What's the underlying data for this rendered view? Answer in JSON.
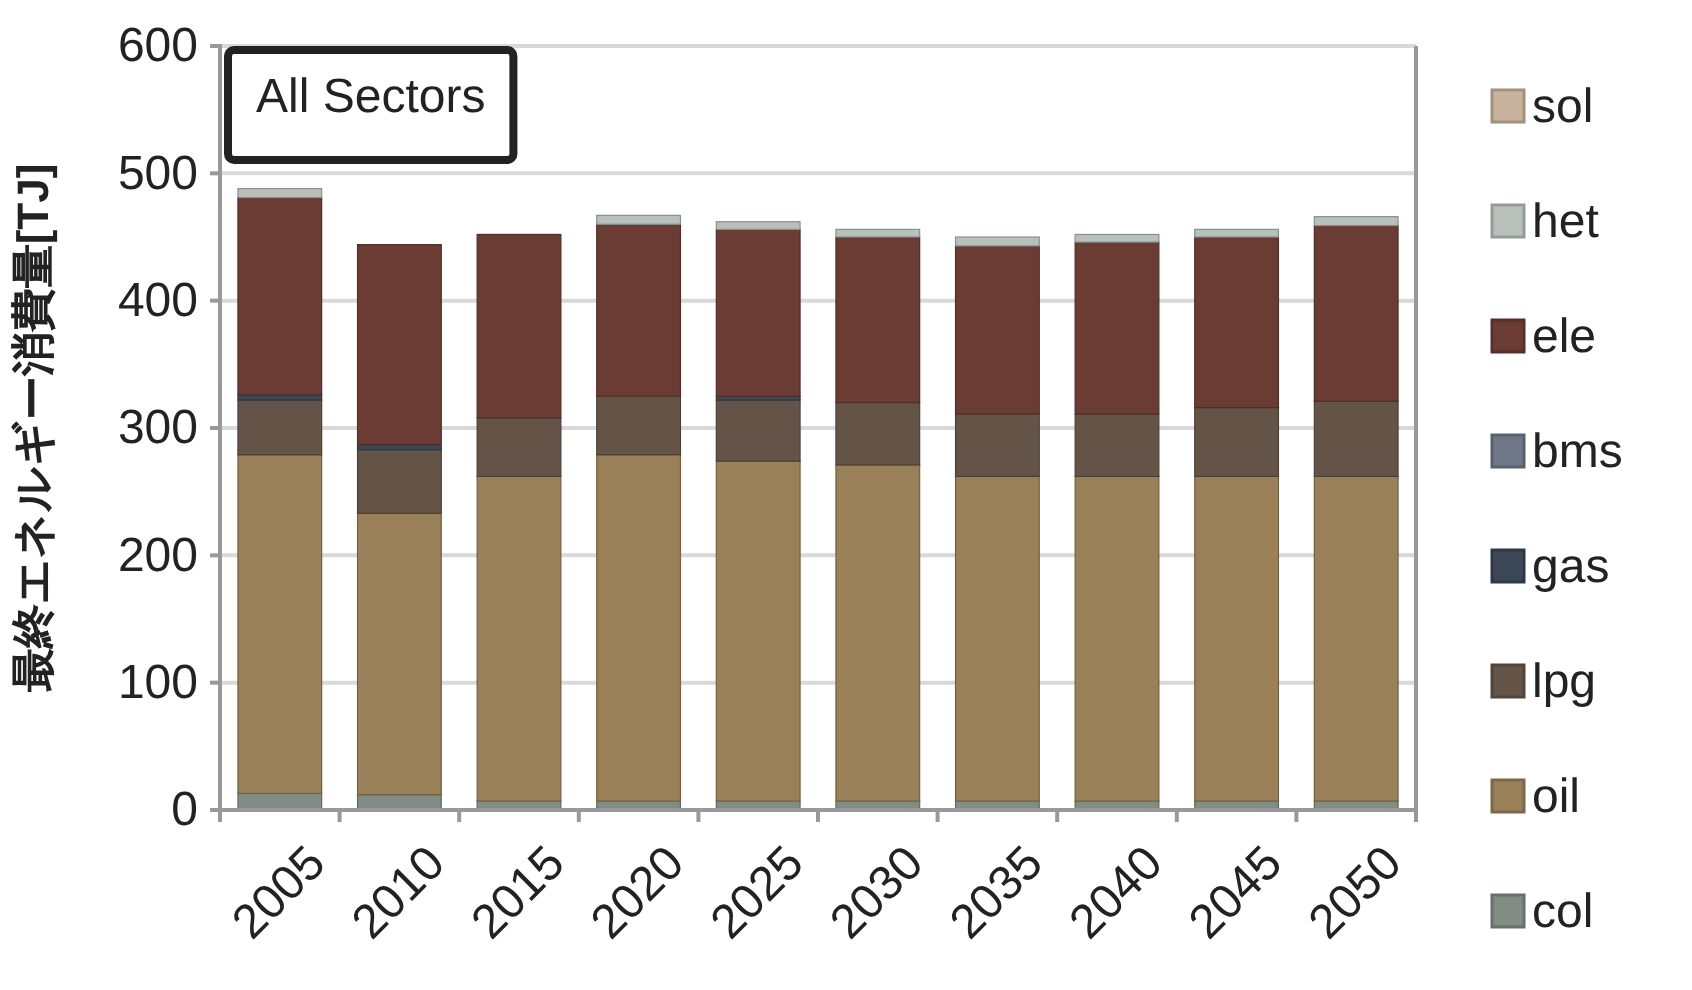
{
  "chart_data": {
    "type": "bar",
    "title": "All Sectors",
    "ylabel": "最終エネルギー消費量[TJ]",
    "categories": [
      "2005",
      "2010",
      "2015",
      "2020",
      "2025",
      "2030",
      "2035",
      "2040",
      "2045",
      "2050"
    ],
    "stacked": true,
    "ylim": [
      0,
      600
    ],
    "yticks": [
      0,
      100,
      200,
      300,
      400,
      500,
      600
    ],
    "grid": "y",
    "legend": "right",
    "series": [
      {
        "name": "col",
        "color": "#808c84",
        "values": [
          13,
          12,
          7,
          7,
          7,
          7,
          7,
          7,
          7,
          7
        ]
      },
      {
        "name": "oil",
        "color": "#9a8058",
        "values": [
          266,
          221,
          255,
          272,
          267,
          264,
          255,
          255,
          255,
          255
        ]
      },
      {
        "name": "lpg",
        "color": "#645448",
        "values": [
          43,
          50,
          46,
          46,
          48,
          49,
          49,
          49,
          54,
          59
        ]
      },
      {
        "name": "gas",
        "color": "#3c4858",
        "values": [
          4,
          4,
          0,
          0,
          3,
          0,
          0,
          0,
          0,
          0
        ]
      },
      {
        "name": "bms",
        "color": "#707888",
        "values": [
          0,
          0,
          0,
          0,
          0,
          0,
          0,
          0,
          0,
          0
        ]
      },
      {
        "name": "ele",
        "color": "#6b3c34",
        "values": [
          155,
          157,
          144,
          135,
          131,
          130,
          132,
          135,
          134,
          138
        ]
      },
      {
        "name": "het",
        "color": "#b8c0bc",
        "values": [
          7,
          0,
          0,
          7,
          6,
          6,
          7,
          6,
          6,
          7
        ]
      },
      {
        "name": "sol",
        "color": "#c8b49c",
        "values": [
          0,
          0,
          0,
          0,
          0,
          0,
          0,
          0,
          0,
          0
        ]
      }
    ]
  }
}
